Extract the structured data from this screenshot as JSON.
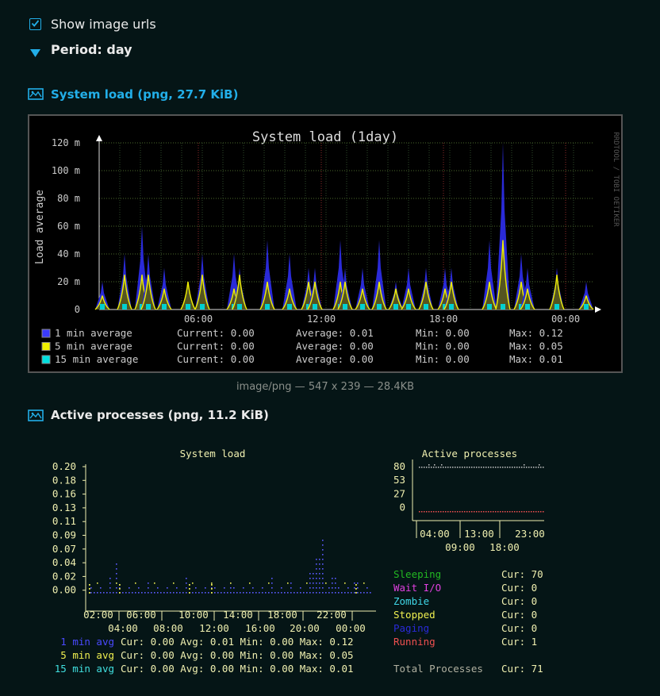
{
  "controls": {
    "show_urls_label": "Show image urls",
    "show_urls_checked": true,
    "period_label": "Period: day"
  },
  "graph1": {
    "header": "System load (png, 27.7 KiB)",
    "title": "System load  (1day)",
    "ylabel": "Load average",
    "yticks": [
      "120 m",
      "100 m",
      "80 m",
      "60 m",
      "40 m",
      "20 m",
      "0"
    ],
    "xticks": [
      "06:00",
      "12:00",
      "18:00",
      "00:00"
    ],
    "watermark": "RRDTOOL / TOBI OETIKER",
    "legend": [
      {
        "label": "1 min average",
        "current": "Current: 0.00",
        "average": "Average: 0.01",
        "min": "Min: 0.00",
        "max": "Max: 0.12",
        "color": "#3b3bff"
      },
      {
        "label": "5 min average",
        "current": "Current: 0.00",
        "average": "Average: 0.00",
        "min": "Min: 0.00",
        "max": "Max: 0.05",
        "color": "#f0f000"
      },
      {
        "label": "15 min average",
        "current": "Current: 0.00",
        "average": "Average: 0.00",
        "min": "Min: 0.00",
        "max": "Max: 0.01",
        "color": "#00e0e0"
      }
    ],
    "caption": "image/png — 547 x 239 — 28.4KB"
  },
  "graph2": {
    "header": "Active processes (png, 11.2 KiB)",
    "load_title": "System load",
    "load_yticks": [
      "0.20",
      "0.18",
      "0.16",
      "0.13",
      "0.11",
      "0.09",
      "0.07",
      "0.04",
      "0.02",
      "0.00"
    ],
    "load_xticks_top": [
      "02:00",
      "06:00",
      "10:00",
      "14:00",
      "18:00",
      "22:00"
    ],
    "load_xticks_bottom": [
      "04:00",
      "08:00",
      "12:00",
      "16:00",
      "20:00",
      "00:00"
    ],
    "load_legend": [
      {
        "name": "1 min avg",
        "stats": "Cur: 0.00 Avg: 0.01 Min: 0.00 Max: 0.12",
        "color": "#4a4aff"
      },
      {
        "name": "5 min avg",
        "stats": "Cur: 0.00 Avg: 0.00 Min: 0.00 Max: 0.05",
        "color": "#f0f050"
      },
      {
        "name": "15 min avg",
        "stats": "Cur: 0.00 Avg: 0.00 Min: 0.00 Max: 0.01",
        "color": "#40e0e0"
      }
    ],
    "proc_title": "Active processes",
    "proc_yticks": [
      "80",
      "53",
      "27",
      "0"
    ],
    "proc_xticks_top": [
      "04:00",
      "13:00",
      "23:00"
    ],
    "proc_xticks_bottom": [
      "09:00",
      "18:00"
    ],
    "proc_legend": [
      {
        "name": "Sleeping",
        "cur": "Cur: 70",
        "color": "#22b822"
      },
      {
        "name": "Wait I/O",
        "cur": "Cur: 0",
        "color": "#e040e0"
      },
      {
        "name": "Zombie",
        "cur": "Cur: 0",
        "color": "#40d8e8"
      },
      {
        "name": "Stopped",
        "cur": "Cur: 0",
        "color": "#f0f050"
      },
      {
        "name": "Paging",
        "cur": "Cur: 0",
        "color": "#2a2ad8"
      },
      {
        "name": "Running",
        "cur": "Cur: 1",
        "color": "#f05050"
      }
    ],
    "proc_total_name": "Total Processes",
    "proc_total_cur": "Cur: 71"
  },
  "chart_data": [
    {
      "type": "area",
      "title": "System load  (1day)",
      "ylabel": "Load average",
      "ylim": [
        0,
        0.12
      ],
      "x_ticks": [
        "06:00",
        "12:00",
        "18:00",
        "00:00"
      ],
      "series_max": {
        "1 min average": 0.12,
        "5 min average": 0.05,
        "15 min average": 0.01
      },
      "peaks_1min": [
        0.02,
        0.04,
        0.06,
        0.04,
        0.03,
        0.02,
        0.04,
        0.04,
        0.03,
        0.05,
        0.04,
        0.03,
        0.03,
        0.05,
        0.03,
        0.03,
        0.05,
        0.02,
        0.03,
        0.03,
        0.03,
        0.03,
        0.05,
        0.12,
        0.04,
        0.03,
        0.03,
        0.02
      ],
      "peaks_5min": [
        0.01,
        0.025,
        0.025,
        0.025,
        0.015,
        0.02,
        0.025,
        0.015,
        0.025,
        0.02,
        0.015,
        0.02,
        0.02,
        0.02,
        0.02,
        0.015,
        0.02,
        0.015,
        0.015,
        0.02,
        0.015,
        0.02,
        0.02,
        0.05,
        0.02,
        0.015,
        0.025,
        0.01
      ]
    },
    {
      "type": "line",
      "title": "Active processes",
      "ylim": [
        0,
        80
      ],
      "series": [
        {
          "name": "Sleeping",
          "value": 70
        },
        {
          "name": "Running",
          "value": 1
        }
      ]
    }
  ]
}
